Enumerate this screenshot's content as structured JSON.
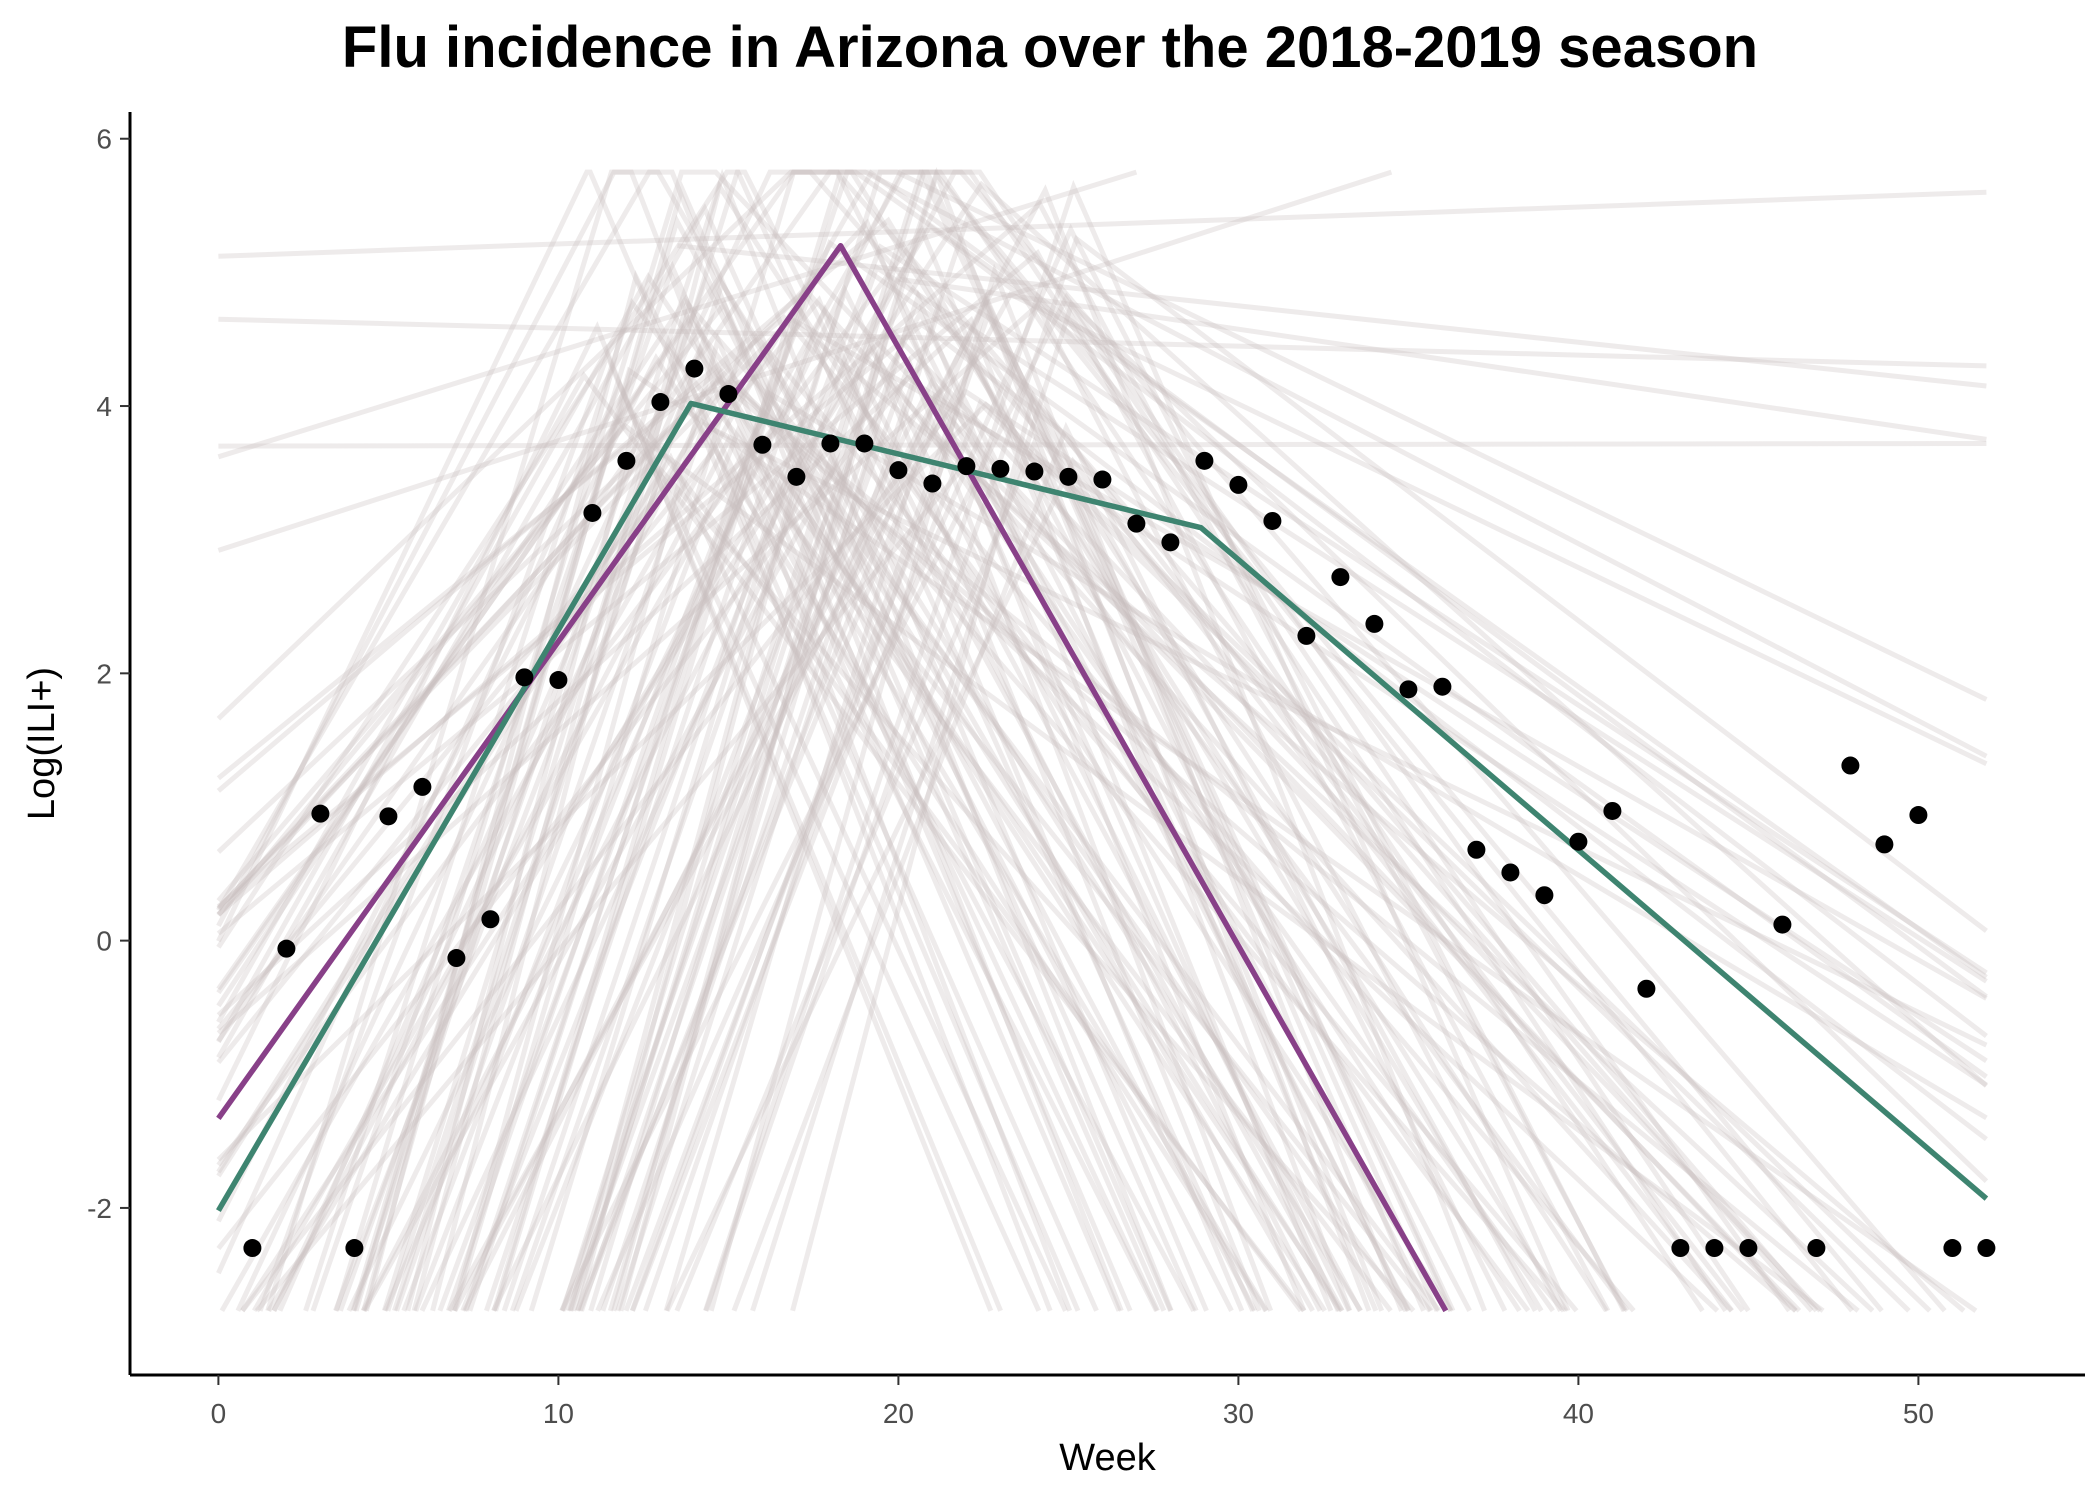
{
  "chart_data": {
    "type": "line",
    "title": "Flu incidence in Arizona over the 2018-2019 season",
    "xlabel": "Week",
    "ylabel": "Log(ILI+)",
    "xlim": [
      -2.6,
      54.9
    ],
    "ylim": [
      -3.25,
      6.2
    ],
    "x_ticks": [
      0,
      10,
      20,
      30,
      40,
      50
    ],
    "y_ticks": [
      -2,
      0,
      2,
      4,
      6
    ],
    "grid": false,
    "legend": "none",
    "series": [
      {
        "kind": "points",
        "color": "#000000",
        "points": [
          [
            1,
            -2.3
          ],
          [
            2,
            -0.06
          ],
          [
            3,
            0.95
          ],
          [
            4,
            -2.3
          ],
          [
            5,
            0.93
          ],
          [
            6,
            1.15
          ],
          [
            7,
            -0.13
          ],
          [
            8,
            0.16
          ],
          [
            9,
            1.97
          ],
          [
            10,
            1.95
          ],
          [
            11,
            3.2
          ],
          [
            12,
            3.59
          ],
          [
            13,
            4.03
          ],
          [
            14,
            4.28
          ],
          [
            15,
            4.09
          ],
          [
            16,
            3.71
          ],
          [
            17,
            3.47
          ],
          [
            18,
            3.72
          ],
          [
            19,
            3.72
          ],
          [
            20,
            3.52
          ],
          [
            21,
            3.42
          ],
          [
            22,
            3.55
          ],
          [
            23,
            3.53
          ],
          [
            24,
            3.51
          ],
          [
            25,
            3.47
          ],
          [
            26,
            3.45
          ],
          [
            27,
            3.12
          ],
          [
            28,
            2.98
          ],
          [
            29,
            3.59
          ],
          [
            30,
            3.41
          ],
          [
            31,
            3.14
          ],
          [
            32,
            2.28
          ],
          [
            33,
            2.72
          ],
          [
            34,
            2.37
          ],
          [
            35,
            1.88
          ],
          [
            36,
            1.9
          ],
          [
            37,
            0.68
          ],
          [
            38,
            0.51
          ],
          [
            39,
            0.34
          ],
          [
            40,
            0.74
          ],
          [
            41,
            0.97
          ],
          [
            42,
            -0.36
          ],
          [
            43,
            -2.3
          ],
          [
            44,
            -2.3
          ],
          [
            45,
            -2.3
          ],
          [
            46,
            0.12
          ],
          [
            47,
            -2.3
          ],
          [
            48,
            1.31
          ],
          [
            49,
            0.72
          ],
          [
            50,
            0.94
          ],
          [
            51,
            -2.3
          ],
          [
            52,
            -2.3
          ]
        ]
      },
      {
        "kind": "line",
        "color": "#884088",
        "points": [
          [
            0,
            -1.33
          ],
          [
            18.3,
            5.2
          ],
          [
            36.1,
            -2.77
          ]
        ]
      },
      {
        "kind": "line",
        "color": "#3e8470",
        "points": [
          [
            0,
            -2.02
          ],
          [
            13.9,
            4.02
          ],
          [
            28.9,
            3.09
          ],
          [
            52,
            -1.93
          ]
        ]
      },
      {
        "kind": "sample-lines",
        "color": "#c8bcbc",
        "count": 120,
        "peak_range": [
          10.5,
          25.5
        ],
        "peak_value_range": [
          3.5,
          6.2
        ],
        "value_floor": -2.77,
        "value_ceiling": 5.75,
        "extra_lines": [
          [
            [
              0,
              5.12
            ],
            [
              52,
              5.6
            ]
          ],
          [
            [
              0,
              4.65
            ],
            [
              52,
              4.3
            ]
          ],
          [
            [
              0,
              3.7
            ],
            [
              52,
              3.72
            ]
          ],
          [
            [
              0,
              2.92
            ],
            [
              34.5,
              5.75
            ]
          ],
          [
            [
              0,
              3.62
            ],
            [
              27,
              5.75
            ]
          ],
          [
            [
              13.5,
              5.2
            ],
            [
              52,
              4.15
            ]
          ],
          [
            [
              20,
              4.95
            ],
            [
              52,
              3.75
            ]
          ]
        ]
      }
    ]
  }
}
